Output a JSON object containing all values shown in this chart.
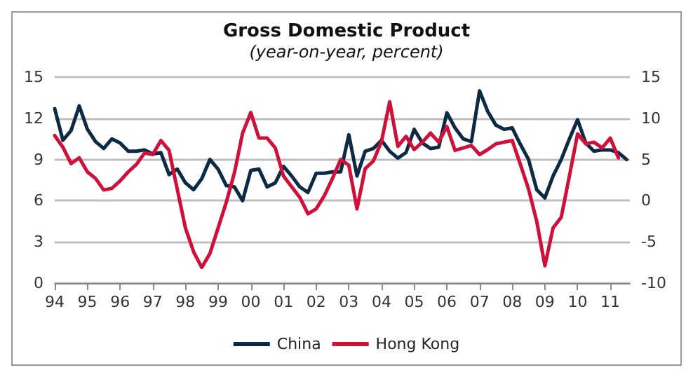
{
  "chart_data": {
    "type": "line",
    "title": "Gross Domestic Product",
    "subtitle": "(year-on-year, percent)",
    "x": [
      1994,
      1994.25,
      1994.5,
      1994.75,
      1995,
      1995.25,
      1995.5,
      1995.75,
      1996,
      1996.25,
      1996.5,
      1996.75,
      1997,
      1997.25,
      1997.5,
      1997.75,
      1998,
      1998.25,
      1998.5,
      1998.75,
      1999,
      1999.25,
      1999.5,
      1999.75,
      2000,
      2000.25,
      2000.5,
      2000.75,
      2001,
      2001.25,
      2001.5,
      2001.75,
      2002,
      2002.25,
      2002.5,
      2002.75,
      2003,
      2003.25,
      2003.5,
      2003.75,
      2004,
      2004.25,
      2004.5,
      2004.75,
      2005,
      2005.25,
      2005.5,
      2005.75,
      2006,
      2006.25,
      2006.5,
      2006.75,
      2007,
      2007.25,
      2007.5,
      2007.75,
      2008,
      2008.25,
      2008.5,
      2008.75,
      2009,
      2009.25,
      2009.5,
      2009.75,
      2010,
      2010.25,
      2010.5,
      2010.75,
      2011,
      2011.25,
      2011.5
    ],
    "series": [
      {
        "name": "China",
        "color": "#0d2a45",
        "values": [
          12.7,
          10.4,
          11.1,
          12.9,
          11.2,
          10.3,
          9.8,
          10.5,
          10.2,
          9.6,
          9.6,
          9.7,
          9.4,
          9.5,
          7.9,
          8.3,
          7.3,
          6.8,
          7.6,
          9.0,
          8.3,
          7.1,
          7.0,
          6.0,
          8.2,
          8.3,
          7.0,
          7.3,
          8.5,
          7.8,
          7.0,
          6.6,
          8.0,
          8.0,
          8.1,
          8.1,
          10.8,
          7.8,
          9.6,
          9.8,
          10.4,
          9.6,
          9.1,
          9.5,
          11.2,
          10.2,
          9.8,
          9.9,
          12.4,
          11.3,
          10.5,
          10.3,
          14.0,
          12.5,
          11.5,
          11.2,
          11.3,
          10.1,
          9.0,
          6.8,
          6.2,
          7.8,
          9.0,
          10.5,
          11.9,
          10.2,
          9.6,
          9.7,
          9.7,
          9.5,
          9.0
        ]
      },
      {
        "name": "Hong Kong",
        "color": "#d0103a",
        "axis": "y2",
        "values": [
          7.9,
          6.5,
          4.5,
          5.2,
          3.5,
          2.7,
          1.3,
          1.5,
          2.4,
          3.5,
          4.4,
          5.8,
          5.6,
          7.3,
          6.1,
          1.4,
          -3.3,
          -6.2,
          -8.1,
          -6.4,
          -3.3,
          -0.2,
          3.4,
          8.2,
          10.7,
          7.6,
          7.6,
          6.4,
          3.0,
          1.7,
          0.4,
          -1.6,
          -1.0,
          0.6,
          2.7,
          5.0,
          4.3,
          -1.0,
          3.9,
          4.8,
          7.2,
          12.0,
          6.6,
          7.8,
          6.2,
          7.1,
          8.2,
          7.1,
          9.0,
          6.1,
          6.4,
          6.7,
          5.6,
          6.2,
          6.9,
          7.1,
          7.3,
          4.4,
          1.4,
          -2.5,
          -7.9,
          -3.3,
          -2.0,
          3.0,
          8.1,
          6.9,
          7.1,
          6.4,
          7.6,
          5.2,
          null
        ]
      }
    ],
    "xlim": [
      1994,
      2011.6
    ],
    "xticks": [
      {
        "value": 1994,
        "label": "94"
      },
      {
        "value": 1995,
        "label": "95"
      },
      {
        "value": 1996,
        "label": "96"
      },
      {
        "value": 1997,
        "label": "97"
      },
      {
        "value": 1998,
        "label": "98"
      },
      {
        "value": 1999,
        "label": "99"
      },
      {
        "value": 2000,
        "label": "00"
      },
      {
        "value": 2001,
        "label": "01"
      },
      {
        "value": 2002,
        "label": "02"
      },
      {
        "value": 2003,
        "label": "03"
      },
      {
        "value": 2004,
        "label": "04"
      },
      {
        "value": 2005,
        "label": "05"
      },
      {
        "value": 2006,
        "label": "06"
      },
      {
        "value": 2007,
        "label": "07"
      },
      {
        "value": 2008,
        "label": "08"
      },
      {
        "value": 2009,
        "label": "09"
      },
      {
        "value": 2010,
        "label": "10"
      },
      {
        "value": 2011,
        "label": "11"
      }
    ],
    "ylim": [
      0,
      15
    ],
    "yticks": [
      0,
      3,
      6,
      9,
      12,
      15
    ],
    "y2lim": [
      -10,
      15
    ],
    "y2ticks": [
      -10,
      -5,
      0,
      5,
      10,
      15
    ],
    "grid": "y",
    "legend": "bottom",
    "marker": "none",
    "line_style": "solid"
  }
}
